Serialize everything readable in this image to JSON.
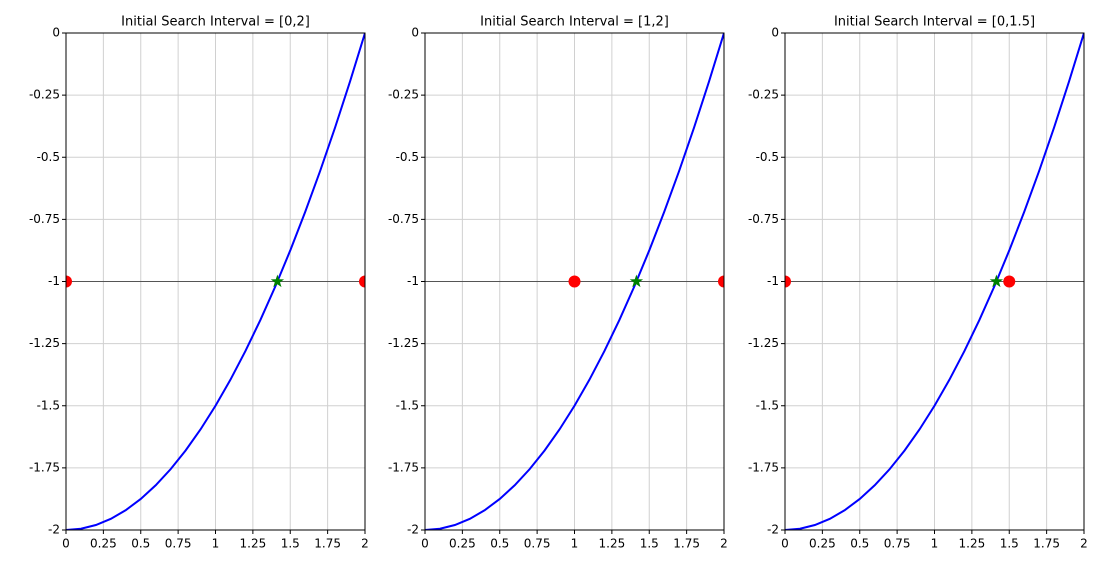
{
  "chart_data": [
    {
      "type": "line",
      "title": "Initial Search Interval = [0,2]",
      "xlim": [
        0,
        2
      ],
      "ylim": [
        -2,
        0
      ],
      "xticks": [
        0,
        0.25,
        0.5,
        0.75,
        1,
        1.25,
        1.5,
        1.75,
        2
      ],
      "yticks": [
        -2,
        -1.75,
        -1.5,
        -1.25,
        -1,
        -0.75,
        -0.5,
        -0.25,
        0
      ],
      "grid": true,
      "hline": -1,
      "series": [
        {
          "color": "#0000ff",
          "marker": "none",
          "x": [
            0,
            0.1,
            0.2,
            0.3,
            0.4,
            0.5,
            0.6,
            0.7,
            0.8,
            0.9,
            1,
            1.1,
            1.2,
            1.3,
            1.4,
            1.5,
            1.6,
            1.7,
            1.8,
            1.9,
            2
          ],
          "values": [
            -2,
            -1.995,
            -1.98,
            -1.955,
            -1.92,
            -1.875,
            -1.82,
            -1.755,
            -1.68,
            -1.595,
            -1.5,
            -1.395,
            -1.28,
            -1.155,
            -1.02,
            -0.875,
            -0.72,
            -0.555,
            -0.38,
            -0.195,
            0
          ]
        },
        {
          "color": "#ff0000",
          "marker": "circle",
          "x": [
            0,
            2
          ],
          "values": [
            -1,
            -1
          ]
        },
        {
          "color": "#008000",
          "marker": "star",
          "x": [
            1.414
          ],
          "values": [
            -1
          ]
        }
      ]
    },
    {
      "type": "line",
      "title": "Initial Search Interval = [1,2]",
      "xlim": [
        0,
        2
      ],
      "ylim": [
        -2,
        0
      ],
      "xticks": [
        0,
        0.25,
        0.5,
        0.75,
        1,
        1.25,
        1.5,
        1.75,
        2
      ],
      "yticks": [
        -2,
        -1.75,
        -1.5,
        -1.25,
        -1,
        -0.75,
        -0.5,
        -0.25,
        0
      ],
      "grid": true,
      "hline": -1,
      "series": [
        {
          "color": "#0000ff",
          "marker": "none",
          "x": [
            0,
            0.1,
            0.2,
            0.3,
            0.4,
            0.5,
            0.6,
            0.7,
            0.8,
            0.9,
            1,
            1.1,
            1.2,
            1.3,
            1.4,
            1.5,
            1.6,
            1.7,
            1.8,
            1.9,
            2
          ],
          "values": [
            -2,
            -1.995,
            -1.98,
            -1.955,
            -1.92,
            -1.875,
            -1.82,
            -1.755,
            -1.68,
            -1.595,
            -1.5,
            -1.395,
            -1.28,
            -1.155,
            -1.02,
            -0.875,
            -0.72,
            -0.555,
            -0.38,
            -0.195,
            0
          ]
        },
        {
          "color": "#ff0000",
          "marker": "circle",
          "x": [
            1,
            2
          ],
          "values": [
            -1,
            -1
          ]
        },
        {
          "color": "#008000",
          "marker": "star",
          "x": [
            1.414
          ],
          "values": [
            -1
          ]
        }
      ]
    },
    {
      "type": "line",
      "title": "Initial Search Interval = [0,1.5]",
      "xlim": [
        0,
        2
      ],
      "ylim": [
        -2,
        0
      ],
      "xticks": [
        0,
        0.25,
        0.5,
        0.75,
        1,
        1.25,
        1.5,
        1.75,
        2
      ],
      "yticks": [
        -2,
        -1.75,
        -1.5,
        -1.25,
        -1,
        -0.75,
        -0.5,
        -0.25,
        0
      ],
      "grid": true,
      "hline": -1,
      "series": [
        {
          "color": "#0000ff",
          "marker": "none",
          "x": [
            0,
            0.1,
            0.2,
            0.3,
            0.4,
            0.5,
            0.6,
            0.7,
            0.8,
            0.9,
            1,
            1.1,
            1.2,
            1.3,
            1.4,
            1.5,
            1.6,
            1.7,
            1.8,
            1.9,
            2
          ],
          "values": [
            -2,
            -1.995,
            -1.98,
            -1.955,
            -1.92,
            -1.875,
            -1.82,
            -1.755,
            -1.68,
            -1.595,
            -1.5,
            -1.395,
            -1.28,
            -1.155,
            -1.02,
            -0.875,
            -0.72,
            -0.555,
            -0.38,
            -0.195,
            0
          ]
        },
        {
          "color": "#ff0000",
          "marker": "circle",
          "x": [
            0,
            1.5
          ],
          "values": [
            -1,
            -1
          ]
        },
        {
          "color": "#008000",
          "marker": "star",
          "x": [
            1.414
          ],
          "values": [
            -1
          ]
        }
      ]
    }
  ]
}
